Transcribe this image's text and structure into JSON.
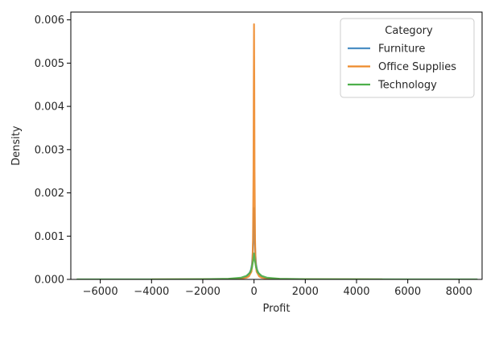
{
  "chart_data": {
    "type": "line",
    "title": "",
    "xlabel": "Profit",
    "ylabel": "Density",
    "xlim": [
      -7150,
      8900
    ],
    "ylim": [
      0,
      0.00618
    ],
    "x_ticks": [
      -6000,
      -4000,
      -2000,
      0,
      2000,
      4000,
      6000,
      8000
    ],
    "x_tick_labels": [
      "−6000",
      "−4000",
      "−2000",
      "0",
      "2000",
      "4000",
      "6000",
      "8000"
    ],
    "y_ticks": [
      0.0,
      0.001,
      0.002,
      0.003,
      0.004,
      0.005,
      0.006
    ],
    "y_tick_labels": [
      "0.000",
      "0.001",
      "0.002",
      "0.003",
      "0.004",
      "0.005",
      "0.006"
    ],
    "grid": false,
    "legend": {
      "title": "Category",
      "placement": "top-right"
    },
    "series": [
      {
        "name": "Furniture",
        "color": "#4c8fc4",
        "x": [
          -2000,
          -1000,
          -500,
          -300,
          -200,
          -120,
          -80,
          -50,
          -30,
          -15,
          0,
          15,
          30,
          50,
          80,
          120,
          200,
          300,
          500,
          1000,
          1200
        ],
        "y": [
          0,
          5e-06,
          2.5e-05,
          6e-05,
          0.00012,
          0.00022,
          0.00035,
          0.0006,
          0.0009,
          0.0013,
          0.00165,
          0.0013,
          0.0009,
          0.0006,
          0.00035,
          0.00022,
          0.00012,
          6e-05,
          2.5e-05,
          5e-06,
          0
        ]
      },
      {
        "name": "Office Supplies",
        "color": "#ee8a2a",
        "x": [
          -4000,
          -2000,
          -1000,
          -500,
          -300,
          -200,
          -100,
          -60,
          -40,
          -20,
          -10,
          0,
          10,
          20,
          40,
          60,
          100,
          200,
          300,
          500,
          1000,
          2000,
          5000
        ],
        "y": [
          0,
          4e-06,
          1e-05,
          2e-05,
          4e-05,
          7e-05,
          0.00018,
          0.0004,
          0.0009,
          0.0025,
          0.0045,
          0.0059,
          0.0045,
          0.0025,
          0.0009,
          0.0004,
          0.00018,
          7e-05,
          4e-05,
          2e-05,
          1e-05,
          4e-06,
          0
        ]
      },
      {
        "name": "Technology",
        "color": "#4daf4a",
        "x": [
          -6900,
          -4000,
          -2000,
          -1000,
          -500,
          -300,
          -150,
          -80,
          -30,
          0,
          30,
          80,
          150,
          300,
          500,
          1000,
          2000,
          4000,
          6000,
          8700
        ],
        "y": [
          0,
          1e-06,
          5e-06,
          1.5e-05,
          4e-05,
          8e-05,
          0.00016,
          0.00028,
          0.00045,
          0.0006,
          0.00045,
          0.00028,
          0.00016,
          8e-05,
          4e-05,
          1.5e-05,
          5e-06,
          2e-06,
          1e-06,
          0
        ]
      }
    ]
  }
}
